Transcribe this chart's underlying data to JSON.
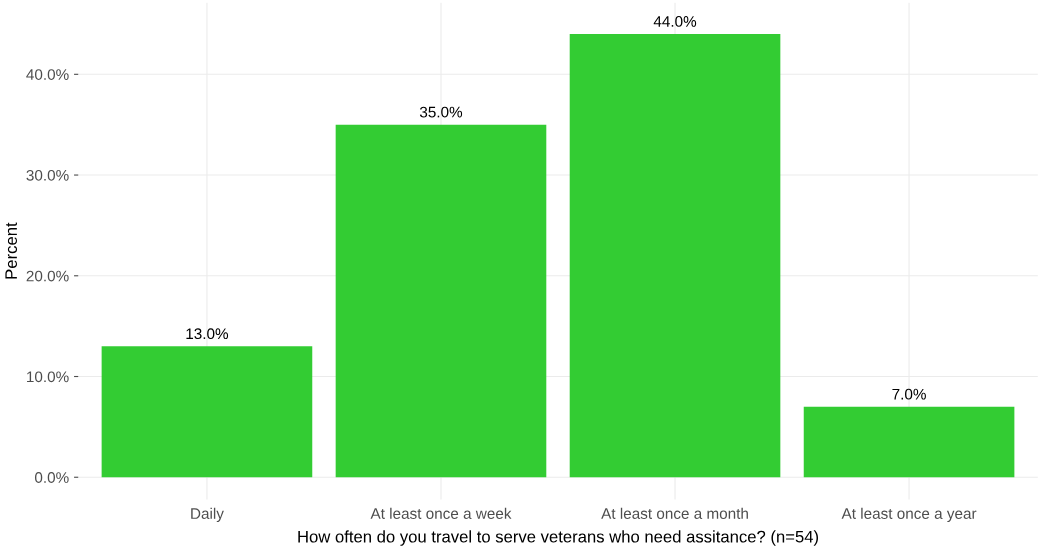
{
  "chart_data": {
    "type": "bar",
    "xlabel": "How often do you travel to serve veterans who need assitance? (n=54)",
    "ylabel": "Percent",
    "categories": [
      "Daily",
      "At least once a week",
      "At least once a month",
      "At least once a year"
    ],
    "values": [
      13,
      35,
      44,
      7
    ],
    "value_labels": [
      "13.0%",
      "35.0%",
      "44.0%",
      "7.0%"
    ],
    "color": "#33cc33",
    "ylim": [
      -2.2,
      47.1
    ],
    "yticks": [
      {
        "value": 0,
        "label": "0.0%"
      },
      {
        "value": 10,
        "label": "10.0%"
      },
      {
        "value": 20,
        "label": "20.0%"
      },
      {
        "value": 30,
        "label": "30.0%"
      },
      {
        "value": 40,
        "label": "40.0%"
      }
    ],
    "grid": true
  }
}
